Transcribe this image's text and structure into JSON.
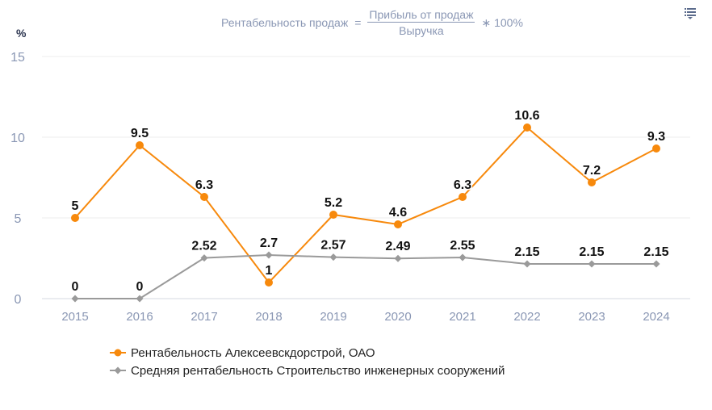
{
  "formula": {
    "left": "Рентабельность продаж",
    "eq": "=",
    "numerator": "Прибыль от продаж",
    "denominator": "Выручка",
    "multiplier": "∗ 100%"
  },
  "unit": "%",
  "menu_icon": "menu-lines-icon",
  "chart_data": {
    "type": "line",
    "x": [
      "2015",
      "2016",
      "2017",
      "2018",
      "2019",
      "2020",
      "2021",
      "2022",
      "2023",
      "2024"
    ],
    "ylim": [
      0,
      15
    ],
    "yticks": [
      0,
      5,
      10,
      15
    ],
    "ylabel": "%",
    "grid": true,
    "legend_placement": "bottom-left",
    "series": [
      {
        "name": "Рентабельность Алексеевскдорстрой, ОАО",
        "color": "#f7890c",
        "marker": "circle",
        "values": [
          5,
          9.5,
          6.3,
          1,
          5.2,
          4.6,
          6.3,
          10.6,
          7.2,
          9.3
        ],
        "labels": [
          "5",
          "9.5",
          "6.3",
          "1",
          "5.2",
          "4.6",
          "6.3",
          "10.6",
          "7.2",
          "9.3"
        ]
      },
      {
        "name": "Средняя рентабельность Строительство инженерных сооружений",
        "color": "#9a9a9a",
        "marker": "diamond",
        "values": [
          0,
          0,
          2.52,
          2.7,
          2.57,
          2.49,
          2.55,
          2.15,
          2.15,
          2.15
        ],
        "labels": [
          "0",
          "0",
          "2.52",
          "2.7",
          "2.57",
          "2.49",
          "2.55",
          "2.15",
          "2.15",
          "2.15"
        ]
      }
    ]
  }
}
